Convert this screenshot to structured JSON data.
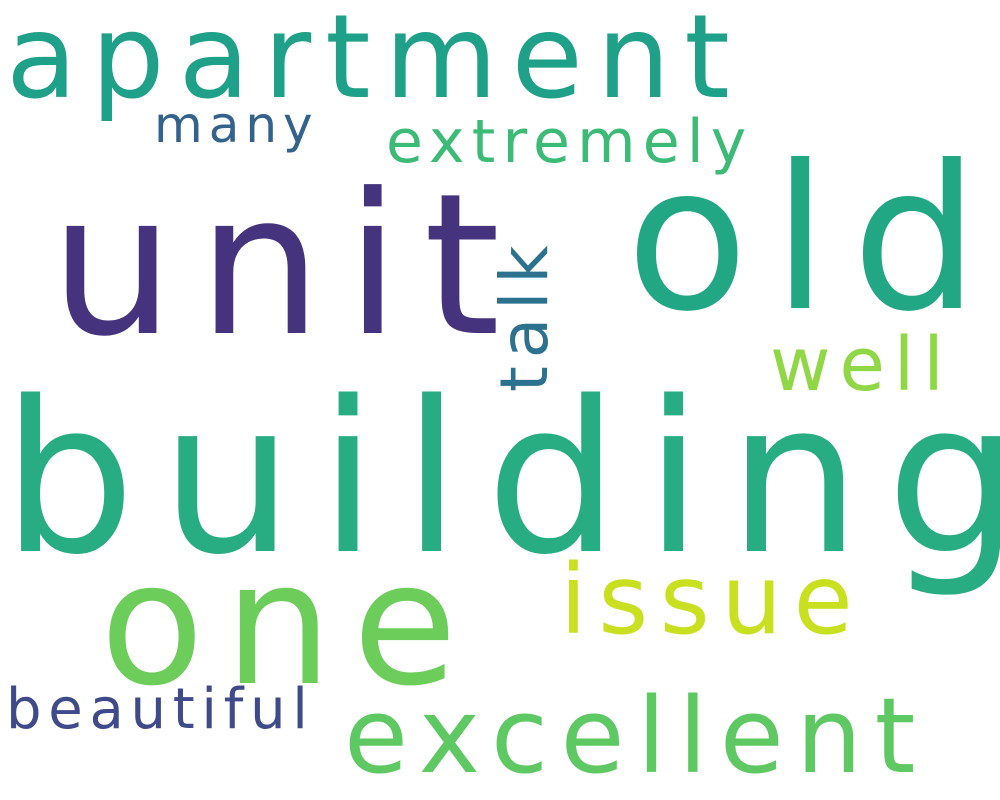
{
  "words": {
    "building": {
      "text": "building",
      "color": "#27ad81"
    },
    "unit": {
      "text": "unit",
      "color": "#46337e"
    },
    "old": {
      "text": "old",
      "color": "#22a785"
    },
    "one": {
      "text": "one",
      "color": "#6ccd5a"
    },
    "apartment": {
      "text": "apartment",
      "color": "#1fa088"
    },
    "excellent": {
      "text": "excellent",
      "color": "#5ec962"
    },
    "issue": {
      "text": "issue",
      "color": "#c8e020"
    },
    "talk": {
      "text": "talk",
      "color": "#2c728e"
    },
    "extremely": {
      "text": "extremely",
      "color": "#3bbb75"
    },
    "well": {
      "text": "well",
      "color": "#8fd744"
    },
    "beautiful": {
      "text": "beautiful",
      "color": "#3e4a89"
    },
    "many": {
      "text": "many",
      "color": "#33638d"
    }
  }
}
